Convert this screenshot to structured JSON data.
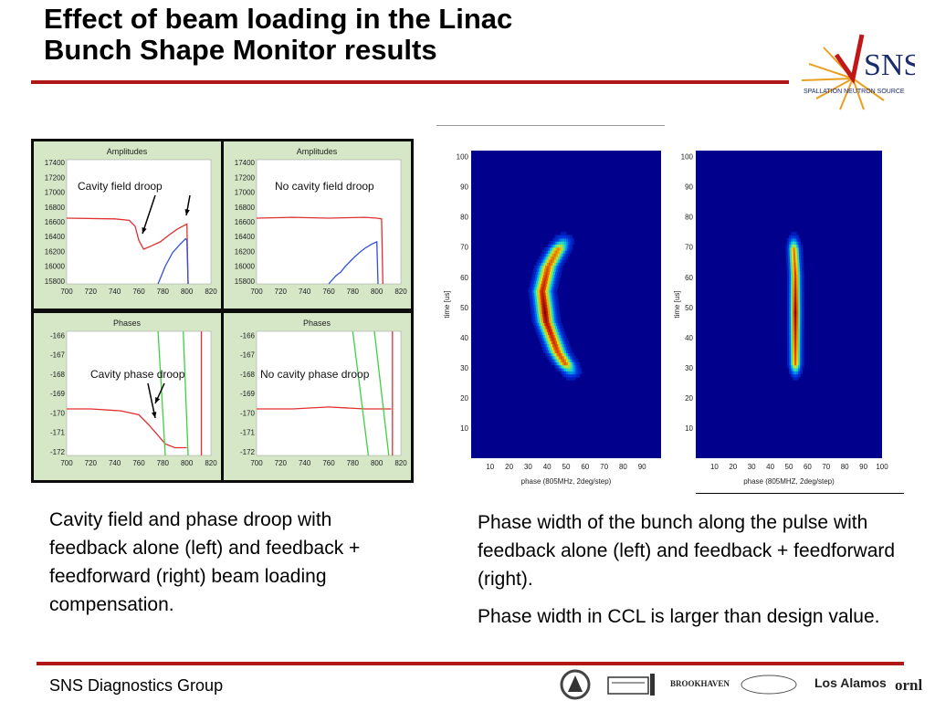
{
  "slide": {
    "title_line1": "Effect of beam loading in the Linac",
    "title_line2": "Bunch Shape Monitor results",
    "logo_text": "SNS",
    "logo_subtext": "SPALLATION NEUTRON SOURCE",
    "left_caption": "Cavity field and phase droop with feedback alone (left) and feedback + feedforward (right) beam loading compensation.",
    "right_caption_p1": "Phase width of the bunch along the pulse with feedback alone (left) and feedback + feedforward (right).",
    "right_caption_p2": "Phase width in CCL is larger than design value.",
    "footer": "SNS Diagnostics Group",
    "partners": [
      "BROOKHAVEN",
      "Los Alamos",
      "ornl"
    ],
    "colors": {
      "accent_red": "#b01818",
      "trace_red": "#e03030",
      "trace_blue": "#3050d0",
      "trace_green": "#40d040"
    }
  },
  "chart_data": [
    {
      "type": "line",
      "title": "Amplitudes",
      "annotation": "Cavity field droop",
      "x_ticks": [
        700,
        720,
        740,
        760,
        780,
        800,
        820
      ],
      "y_ticks": [
        17400,
        17200,
        17000,
        16800,
        16600,
        16400,
        16200,
        16000,
        15800
      ],
      "xlim": [
        700,
        820
      ],
      "ylim": [
        15760,
        17440
      ],
      "series": [
        {
          "color": "#e03030",
          "x": [
            700,
            740,
            752,
            757,
            760,
            764,
            770,
            778,
            785,
            792,
            800,
            801
          ],
          "y": [
            16650,
            16640,
            16620,
            16540,
            16350,
            16230,
            16270,
            16330,
            16420,
            16500,
            16570,
            15760
          ]
        },
        {
          "color": "#3050d0",
          "x": [
            776,
            782,
            788,
            794,
            799,
            800,
            801
          ],
          "y": [
            15760,
            16000,
            16180,
            16290,
            16370,
            16350,
            15760
          ]
        }
      ]
    },
    {
      "type": "line",
      "title": "Amplitudes",
      "annotation": "No cavity field droop",
      "x_ticks": [
        700,
        720,
        740,
        760,
        780,
        800,
        820
      ],
      "y_ticks": [
        17400,
        17200,
        17000,
        16800,
        16600,
        16400,
        16200,
        16000,
        15800
      ],
      "xlim": [
        700,
        820
      ],
      "ylim": [
        15760,
        17440
      ],
      "series": [
        {
          "color": "#e03030",
          "x": [
            700,
            730,
            760,
            790,
            800,
            804,
            805
          ],
          "y": [
            16650,
            16660,
            16650,
            16660,
            16650,
            16640,
            15760
          ]
        },
        {
          "color": "#3050d0",
          "x": [
            760,
            766,
            770,
            774,
            780,
            786,
            790,
            796,
            800,
            801
          ],
          "y": [
            15760,
            15870,
            15920,
            16000,
            16100,
            16190,
            16240,
            16300,
            16330,
            15760
          ]
        }
      ]
    },
    {
      "type": "line",
      "title": "Phases",
      "annotation": "Cavity phase droop",
      "x_ticks": [
        700,
        720,
        740,
        760,
        780,
        800,
        820
      ],
      "y_ticks": [
        -166,
        -167,
        -168,
        -169,
        -170,
        -171,
        -172
      ],
      "xlim": [
        700,
        820
      ],
      "ylim": [
        -172.2,
        -165.8
      ],
      "series": [
        {
          "color": "#e03030",
          "x": [
            700,
            720,
            745,
            760,
            768,
            775,
            782,
            790,
            800
          ],
          "y": [
            -169.8,
            -169.8,
            -169.9,
            -170.1,
            -170.6,
            -171.1,
            -171.6,
            -171.8,
            -171.8
          ]
        },
        {
          "color": "#40d040",
          "x": [
            776,
            782
          ],
          "y": [
            -165.8,
            -172.2
          ]
        },
        {
          "color": "#40d040",
          "x": [
            797,
            801
          ],
          "y": [
            -165.8,
            -172.2
          ]
        },
        {
          "color": "#e03030",
          "x": [
            812,
            812
          ],
          "y": [
            -165.8,
            -172.2
          ]
        }
      ]
    },
    {
      "type": "line",
      "title": "Phases",
      "annotation": "No cavity phase droop",
      "x_ticks": [
        700,
        720,
        740,
        760,
        780,
        800,
        820
      ],
      "y_ticks": [
        -166,
        -167,
        -168,
        -169,
        -170,
        -171,
        -172
      ],
      "xlim": [
        700,
        820
      ],
      "ylim": [
        -172.2,
        -165.8
      ],
      "series": [
        {
          "color": "#e03030",
          "x": [
            700,
            730,
            760,
            790,
            802,
            812
          ],
          "y": [
            -169.8,
            -169.8,
            -169.7,
            -169.8,
            -169.8,
            -169.8
          ]
        },
        {
          "color": "#40d040",
          "x": [
            780,
            793
          ],
          "y": [
            -165.8,
            -172.2
          ]
        },
        {
          "color": "#40d040",
          "x": [
            798,
            810
          ],
          "y": [
            -165.8,
            -172.2
          ]
        },
        {
          "color": "#e03030",
          "x": [
            813,
            813
          ],
          "y": [
            -165.8,
            -172.2
          ]
        }
      ]
    },
    {
      "type": "heatmap",
      "xlabel": "phase (805MHz, 2deg/step)",
      "ylabel": "time [us]",
      "x_ticks": [
        10,
        20,
        30,
        40,
        50,
        60,
        70,
        80,
        90
      ],
      "y_ticks": [
        10,
        20,
        30,
        40,
        50,
        60,
        70,
        80,
        90,
        100
      ],
      "xlim": [
        0,
        100
      ],
      "ylim": [
        0,
        102
      ],
      "ridge": [
        {
          "t": 72,
          "p": 48
        },
        {
          "t": 63,
          "p": 40
        },
        {
          "t": 55,
          "p": 37
        },
        {
          "t": 45,
          "p": 39
        },
        {
          "t": 35,
          "p": 45
        },
        {
          "t": 28,
          "p": 52
        }
      ],
      "width": 5
    },
    {
      "type": "heatmap",
      "xlabel": "phase (805MHZ, 2deg/step)",
      "ylabel": "time [us]",
      "x_ticks": [
        10,
        20,
        30,
        40,
        50,
        60,
        70,
        80,
        90,
        100
      ],
      "y_ticks": [
        10,
        20,
        30,
        40,
        50,
        60,
        70,
        80,
        90,
        100
      ],
      "xlim": [
        0,
        100
      ],
      "ylim": [
        0,
        102
      ],
      "ridge": [
        {
          "t": 72,
          "p": 52
        },
        {
          "t": 60,
          "p": 53
        },
        {
          "t": 50,
          "p": 53
        },
        {
          "t": 40,
          "p": 53
        },
        {
          "t": 28,
          "p": 53
        }
      ],
      "width": 3
    }
  ]
}
